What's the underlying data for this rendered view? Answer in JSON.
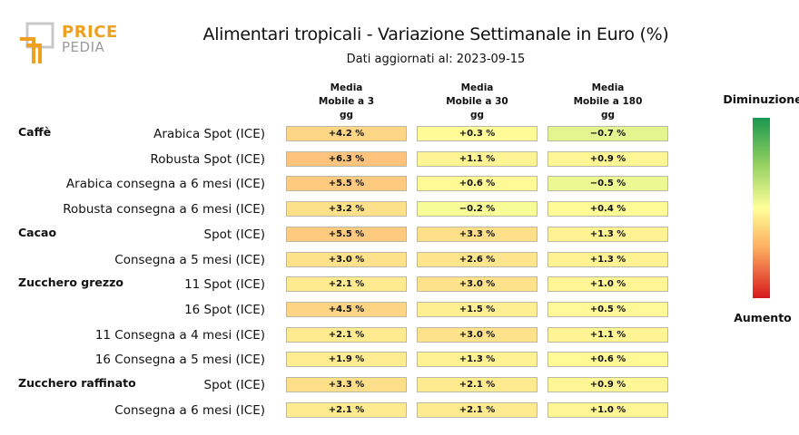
{
  "logo": {
    "line1": "PRICE",
    "line2": "PEDIA"
  },
  "chart_data": {
    "type": "table",
    "title": "Alimentari tropicali - Variazione Settimanale in Euro (%)",
    "subtitle": "Dati aggiornati al: 2023-09-15",
    "columns": [
      "Media\nMobile a 3\ngg",
      "Media\nMobile a 30\ngg",
      "Media\nMobile a 180\ngg"
    ],
    "groups": [
      {
        "name": "Caffè",
        "rows": [
          {
            "label": "Arabica Spot (ICE)",
            "values": [
              4.2,
              0.3,
              -0.7
            ]
          },
          {
            "label": "Robusta Spot (ICE)",
            "values": [
              6.3,
              1.1,
              0.9
            ]
          },
          {
            "label": "Arabica consegna a 6 mesi (ICE)",
            "values": [
              5.5,
              0.6,
              -0.5
            ]
          },
          {
            "label": "Robusta consegna a 6 mesi (ICE)",
            "values": [
              3.2,
              -0.2,
              0.4
            ]
          }
        ]
      },
      {
        "name": "Cacao",
        "rows": [
          {
            "label": "Spot (ICE)",
            "values": [
              5.5,
              3.3,
              1.3
            ]
          },
          {
            "label": "Consegna a 5 mesi (ICE)",
            "values": [
              3.0,
              2.6,
              1.3
            ]
          }
        ]
      },
      {
        "name": "Zucchero grezzo",
        "rows": [
          {
            "label": "11 Spot (ICE)",
            "values": [
              2.1,
              3.0,
              1.0
            ]
          },
          {
            "label": "16 Spot (ICE)",
            "values": [
              4.5,
              1.5,
              0.5
            ]
          },
          {
            "label": "11 Consegna a 4 mesi (ICE)",
            "values": [
              2.1,
              3.0,
              1.1
            ]
          },
          {
            "label": "16 Consegna a 5 mesi (ICE)",
            "values": [
              1.9,
              1.3,
              0.6
            ]
          }
        ]
      },
      {
        "name": "Zucchero raffinato",
        "rows": [
          {
            "label": "Spot (ICE)",
            "values": [
              3.3,
              2.1,
              0.9
            ]
          },
          {
            "label": "Consegna a 6 mesi (ICE)",
            "values": [
              2.1,
              2.1,
              1.0
            ]
          }
        ]
      }
    ],
    "legend": {
      "top": "Diminuzione",
      "bottom": "Aumento",
      "colors": [
        "#1a9850",
        "#91cf60",
        "#ffff99",
        "#fdae61",
        "#d7191c"
      ]
    }
  }
}
